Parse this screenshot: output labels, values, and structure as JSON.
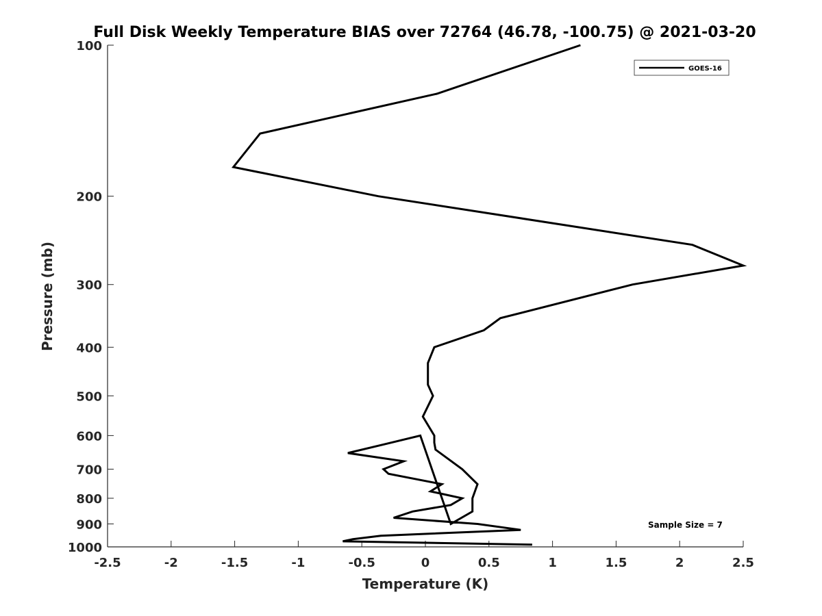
{
  "chart_data": {
    "type": "line",
    "title": "Full Disk Weekly Temperature BIAS over 72764 (46.78, -100.75) @ 2021-03-20",
    "xlabel": "Temperature (K)",
    "ylabel": "Pressure (mb)",
    "xlim": [
      -2.5,
      2.5
    ],
    "ylim": [
      100,
      1000
    ],
    "yscale": "log",
    "yaxis_reversed": true,
    "xticks": [
      -2.5,
      -2,
      -1.5,
      -1,
      -0.5,
      0,
      0.5,
      1,
      1.5,
      2,
      2.5
    ],
    "xtick_labels": [
      "-2.5",
      "-2",
      "-1.5",
      "-1",
      "-0.5",
      "0",
      "0.5",
      "1",
      "1.5",
      "2",
      "2.5"
    ],
    "yticks": [
      100,
      200,
      300,
      400,
      500,
      600,
      700,
      800,
      900,
      1000
    ],
    "ytick_labels": [
      "100",
      "200",
      "300",
      "400",
      "500",
      "600",
      "700",
      "800",
      "900",
      "1000"
    ],
    "grid": false,
    "legend_position": "top-right",
    "series": [
      {
        "name": "GOES-16",
        "color": "#000000",
        "points": [
          {
            "x": 1.22,
            "p": 100
          },
          {
            "x": 0.09,
            "p": 125
          },
          {
            "x": -1.3,
            "p": 150
          },
          {
            "x": -1.51,
            "p": 175
          },
          {
            "x": -0.37,
            "p": 200
          },
          {
            "x": 2.1,
            "p": 250
          },
          {
            "x": 2.5,
            "p": 275
          },
          {
            "x": 1.63,
            "p": 300
          },
          {
            "x": 0.59,
            "p": 350
          },
          {
            "x": 0.46,
            "p": 370
          },
          {
            "x": 0.07,
            "p": 400
          },
          {
            "x": 0.02,
            "p": 430
          },
          {
            "x": 0.02,
            "p": 475
          },
          {
            "x": 0.06,
            "p": 500
          },
          {
            "x": -0.02,
            "p": 550
          },
          {
            "x": 0.07,
            "p": 600
          },
          {
            "x": 0.07,
            "p": 620
          },
          {
            "x": 0.08,
            "p": 640
          },
          {
            "x": 0.29,
            "p": 700
          },
          {
            "x": 0.41,
            "p": 750
          },
          {
            "x": 0.37,
            "p": 800
          },
          {
            "x": 0.37,
            "p": 850
          },
          {
            "x": 0.2,
            "p": 900
          },
          {
            "x": -0.04,
            "p": 600
          },
          {
            "x": -0.33,
            "p": 625
          },
          {
            "x": -0.61,
            "p": 650
          },
          {
            "x": -0.17,
            "p": 675
          },
          {
            "x": -0.33,
            "p": 700
          },
          {
            "x": -0.29,
            "p": 715
          },
          {
            "x": 0.13,
            "p": 750
          },
          {
            "x": 0.04,
            "p": 775
          },
          {
            "x": 0.29,
            "p": 800
          },
          {
            "x": 0.2,
            "p": 825
          },
          {
            "x": -0.1,
            "p": 850
          },
          {
            "x": -0.25,
            "p": 875
          },
          {
            "x": 0.41,
            "p": 900
          },
          {
            "x": 0.75,
            "p": 925
          },
          {
            "x": -0.35,
            "p": 950
          },
          {
            "x": -0.57,
            "p": 965
          },
          {
            "x": -0.65,
            "p": 975
          },
          {
            "x": 0.84,
            "p": 990
          }
        ]
      }
    ],
    "annotations": [
      {
        "text": "Sample Size = 7",
        "position": "bottom-right"
      }
    ]
  }
}
